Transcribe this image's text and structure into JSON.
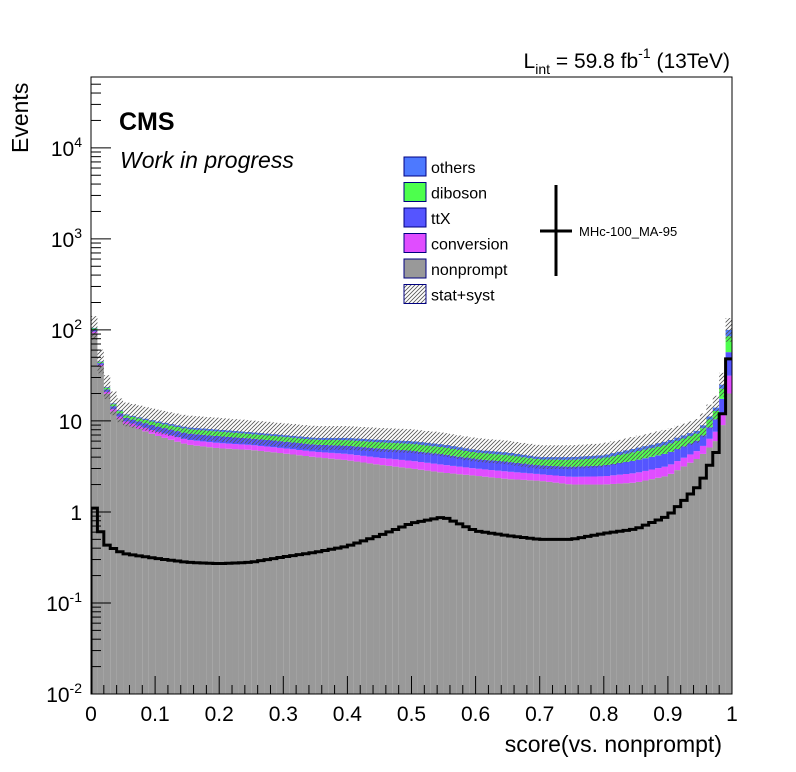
{
  "chart_data": {
    "type": "bar",
    "title": "",
    "lumi_prefix": "L",
    "lumi_sub": "int",
    "lumi_mid": " = 59.8 fb",
    "lumi_sup": "-1",
    "lumi_suffix": " (13TeV)",
    "cms_label": "CMS",
    "extra_label": "Work in progress",
    "xlabel": "score(vs. nonprompt)",
    "ylabel": "Events",
    "xlim": [
      0,
      1
    ],
    "ylim": [
      0.01,
      60000
    ],
    "yscale": "log",
    "bins": 100,
    "x_ticks": [
      "0",
      "0.1",
      "0.2",
      "0.3",
      "0.4",
      "0.5",
      "0.6",
      "0.7",
      "0.8",
      "0.9",
      "1"
    ],
    "y_ticks": [
      {
        "base": "10",
        "exp": "-2",
        "value": 0.01
      },
      {
        "base": "10",
        "exp": "-1",
        "value": 0.1
      },
      {
        "base": "1",
        "exp": "",
        "value": 1
      },
      {
        "base": "10",
        "exp": "",
        "value": 10
      },
      {
        "base": "10",
        "exp": "2",
        "value": 100
      },
      {
        "base": "10",
        "exp": "3",
        "value": 1000
      },
      {
        "base": "10",
        "exp": "4",
        "value": 10000
      }
    ],
    "legend": [
      {
        "label": "others",
        "color": "#4d79ff",
        "type": "fill"
      },
      {
        "label": "diboson",
        "color": "#4dff4d",
        "type": "fill"
      },
      {
        "label": "ttX",
        "color": "#5555ff",
        "type": "fill"
      },
      {
        "label": "conversion",
        "color": "#e04dff",
        "type": "fill"
      },
      {
        "label": "nonprompt",
        "color": "#999999",
        "type": "fill"
      },
      {
        "label": "stat+syst",
        "color": "#555555",
        "type": "hatch"
      }
    ],
    "signal_label": "MHc-100_MA-95",
    "nonprompt_anchors": [
      [
        0.005,
        92
      ],
      [
        0.015,
        40
      ],
      [
        0.03,
        14
      ],
      [
        0.05,
        9.5
      ],
      [
        0.1,
        7
      ],
      [
        0.15,
        5.5
      ],
      [
        0.2,
        5
      ],
      [
        0.25,
        4.8
      ],
      [
        0.3,
        4.4
      ],
      [
        0.35,
        4
      ],
      [
        0.4,
        3.7
      ],
      [
        0.45,
        3.3
      ],
      [
        0.5,
        3
      ],
      [
        0.55,
        2.7
      ],
      [
        0.6,
        2.5
      ],
      [
        0.65,
        2.3
      ],
      [
        0.7,
        2.2
      ],
      [
        0.75,
        2
      ],
      [
        0.8,
        2
      ],
      [
        0.85,
        2.1
      ],
      [
        0.9,
        2.5
      ],
      [
        0.95,
        4
      ],
      [
        0.975,
        6
      ],
      [
        0.985,
        9
      ],
      [
        0.995,
        20
      ]
    ],
    "total_anchors": [
      [
        0.005,
        105
      ],
      [
        0.015,
        45
      ],
      [
        0.03,
        17
      ],
      [
        0.05,
        12
      ],
      [
        0.1,
        10
      ],
      [
        0.15,
        8.5
      ],
      [
        0.2,
        8
      ],
      [
        0.25,
        7.5
      ],
      [
        0.3,
        7
      ],
      [
        0.35,
        6.5
      ],
      [
        0.4,
        6.5
      ],
      [
        0.45,
        6.2
      ],
      [
        0.5,
        6
      ],
      [
        0.55,
        5.5
      ],
      [
        0.6,
        4.8
      ],
      [
        0.65,
        4.5
      ],
      [
        0.7,
        4
      ],
      [
        0.75,
        4
      ],
      [
        0.8,
        4.2
      ],
      [
        0.85,
        5
      ],
      [
        0.9,
        6
      ],
      [
        0.95,
        8
      ],
      [
        0.975,
        14
      ],
      [
        0.985,
        25
      ],
      [
        0.995,
        100
      ]
    ],
    "signal_anchors": [
      [
        0.005,
        1.1
      ],
      [
        0.02,
        0.45
      ],
      [
        0.05,
        0.35
      ],
      [
        0.1,
        0.31
      ],
      [
        0.15,
        0.28
      ],
      [
        0.2,
        0.27
      ],
      [
        0.25,
        0.28
      ],
      [
        0.3,
        0.32
      ],
      [
        0.35,
        0.36
      ],
      [
        0.4,
        0.42
      ],
      [
        0.45,
        0.55
      ],
      [
        0.5,
        0.75
      ],
      [
        0.55,
        0.88
      ],
      [
        0.6,
        0.62
      ],
      [
        0.65,
        0.55
      ],
      [
        0.7,
        0.5
      ],
      [
        0.75,
        0.5
      ],
      [
        0.8,
        0.58
      ],
      [
        0.85,
        0.65
      ],
      [
        0.9,
        0.9
      ],
      [
        0.95,
        2
      ],
      [
        0.975,
        4.5
      ],
      [
        0.985,
        12
      ],
      [
        0.995,
        48
      ]
    ]
  }
}
